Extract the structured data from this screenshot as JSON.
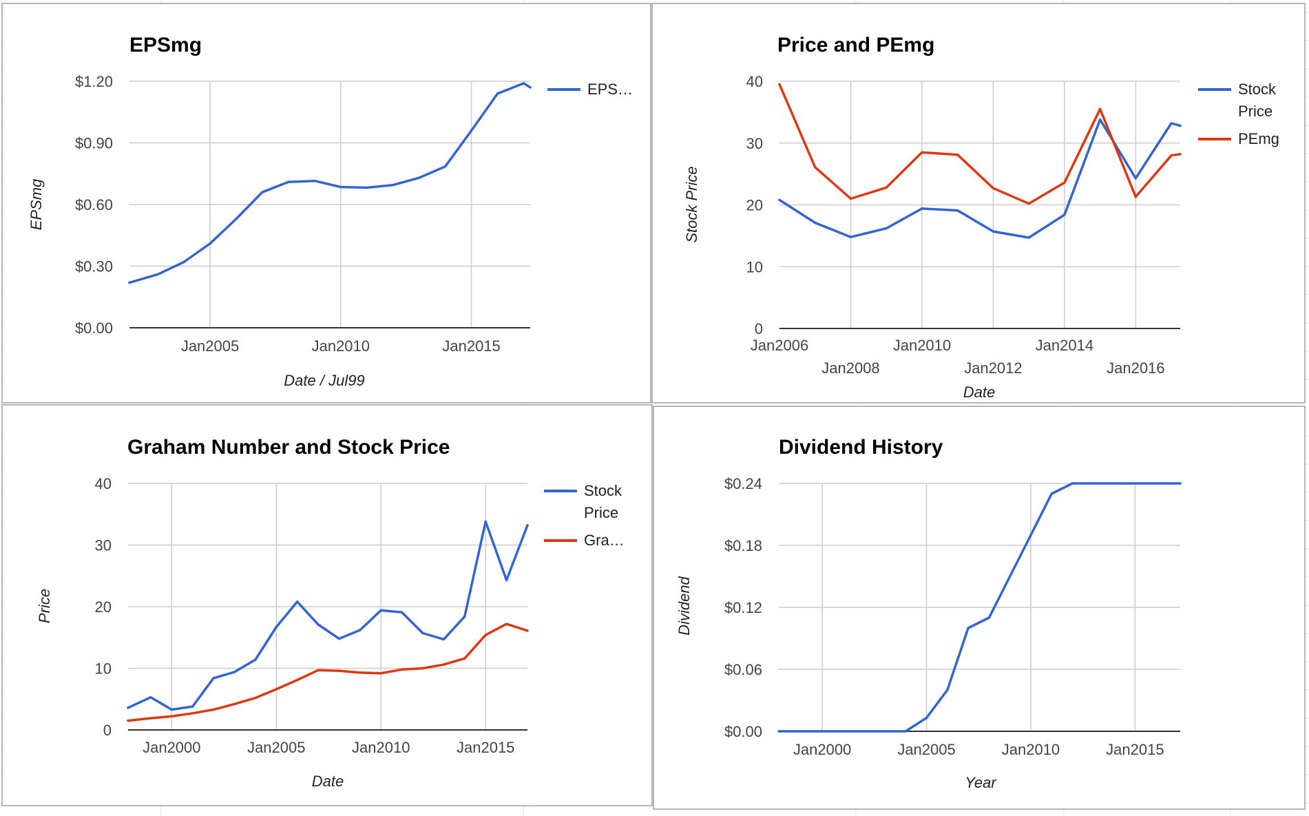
{
  "colors": {
    "blue": "#3366cc",
    "red": "#dc3912",
    "grid": "#cccccc",
    "axis": "#333333",
    "tick_text": "#444444",
    "title_text": "#000000",
    "panel_border": "#9e9e9e",
    "sheet_grid": "#e3e3e3"
  },
  "chart_data": [
    {
      "type": "line",
      "title": "EPSmg",
      "xlabel": "Date / Jul99",
      "ylabel": "EPSmg",
      "x_tick_labels": [
        "Jan2005",
        "Jan2010",
        "Jan2015"
      ],
      "y_tick_labels": [
        "$0.00",
        "$0.30",
        "$0.60",
        "$0.90",
        "$1.20"
      ],
      "ylim": [
        0,
        1.2
      ],
      "xlim": [
        "2001-12",
        "2017-04"
      ],
      "legend": "right",
      "grid": true,
      "series": [
        {
          "name": "EPS…",
          "color": "blue",
          "points": [
            [
              "2001-12",
              0.22
            ],
            [
              "2003-01",
              0.26
            ],
            [
              "2004-01",
              0.32
            ],
            [
              "2005-01",
              0.41
            ],
            [
              "2006-01",
              0.53
            ],
            [
              "2007-01",
              0.66
            ],
            [
              "2008-01",
              0.71
            ],
            [
              "2009-01",
              0.715
            ],
            [
              "2010-01",
              0.685
            ],
            [
              "2011-01",
              0.682
            ],
            [
              "2012-01",
              0.695
            ],
            [
              "2013-01",
              0.73
            ],
            [
              "2014-01",
              0.785
            ],
            [
              "2015-01",
              0.96
            ],
            [
              "2016-01",
              1.14
            ],
            [
              "2017-01",
              1.19
            ],
            [
              "2017-04",
              1.17
            ]
          ]
        }
      ]
    },
    {
      "type": "line",
      "title": "Price and PEmg",
      "xlabel": "Date",
      "ylabel": "Stock Price",
      "x_tick_labels": [
        "Jan2006",
        "Jan2008",
        "Jan2010",
        "Jan2012",
        "Jan2014",
        "Jan2016"
      ],
      "y_tick_labels": [
        "0",
        "10",
        "20",
        "30",
        "40"
      ],
      "ylim": [
        0,
        40
      ],
      "xlim": [
        "2006-01",
        "2017-04"
      ],
      "legend": "right",
      "grid": true,
      "series": [
        {
          "name": "Stock Price",
          "color": "blue",
          "points": [
            [
              "2006-01",
              20.8
            ],
            [
              "2007-01",
              17.1
            ],
            [
              "2008-01",
              14.8
            ],
            [
              "2009-01",
              16.2
            ],
            [
              "2010-01",
              19.4
            ],
            [
              "2011-01",
              19.1
            ],
            [
              "2012-01",
              15.7
            ],
            [
              "2013-01",
              14.7
            ],
            [
              "2014-01",
              18.4
            ],
            [
              "2015-01",
              33.8
            ],
            [
              "2016-01",
              24.3
            ],
            [
              "2017-01",
              33.2
            ],
            [
              "2017-04",
              32.8
            ]
          ]
        },
        {
          "name": "PEmg",
          "color": "red",
          "points": [
            [
              "2006-01",
              39.5
            ],
            [
              "2007-01",
              26.1
            ],
            [
              "2008-01",
              21.0
            ],
            [
              "2009-01",
              22.8
            ],
            [
              "2010-01",
              28.5
            ],
            [
              "2011-01",
              28.1
            ],
            [
              "2012-01",
              22.7
            ],
            [
              "2013-01",
              20.2
            ],
            [
              "2014-01",
              23.6
            ],
            [
              "2015-01",
              35.5
            ],
            [
              "2016-01",
              21.3
            ],
            [
              "2017-01",
              28.0
            ],
            [
              "2017-04",
              28.2
            ]
          ]
        }
      ]
    },
    {
      "type": "line",
      "title": "Graham Number and Stock Price",
      "xlabel": "Date",
      "ylabel": "Price",
      "x_tick_labels": [
        "Jan2000",
        "Jan2005",
        "Jan2010",
        "Jan2015"
      ],
      "y_tick_labels": [
        "0",
        "10",
        "20",
        "30",
        "40"
      ],
      "ylim": [
        0,
        40
      ],
      "xlim": [
        "1997-12",
        "2017-01"
      ],
      "legend": "right",
      "grid": true,
      "series": [
        {
          "name": "Stock Price",
          "color": "blue",
          "points": [
            [
              "1997-12",
              3.6
            ],
            [
              "1999-01",
              5.3
            ],
            [
              "2000-01",
              3.3
            ],
            [
              "2001-01",
              3.8
            ],
            [
              "2002-01",
              8.4
            ],
            [
              "2003-01",
              9.4
            ],
            [
              "2004-01",
              11.4
            ],
            [
              "2005-01",
              16.7
            ],
            [
              "2006-01",
              20.8
            ],
            [
              "2007-01",
              17.1
            ],
            [
              "2008-01",
              14.8
            ],
            [
              "2009-01",
              16.2
            ],
            [
              "2010-01",
              19.4
            ],
            [
              "2011-01",
              19.1
            ],
            [
              "2012-01",
              15.7
            ],
            [
              "2013-01",
              14.7
            ],
            [
              "2014-01",
              18.4
            ],
            [
              "2015-01",
              33.8
            ],
            [
              "2016-01",
              24.3
            ],
            [
              "2017-01",
              33.2
            ]
          ]
        },
        {
          "name": "Gra…",
          "color": "red",
          "points": [
            [
              "1997-12",
              1.5
            ],
            [
              "1999-01",
              1.9
            ],
            [
              "2000-01",
              2.2
            ],
            [
              "2001-01",
              2.7
            ],
            [
              "2002-01",
              3.3
            ],
            [
              "2003-01",
              4.2
            ],
            [
              "2004-01",
              5.2
            ],
            [
              "2005-01",
              6.6
            ],
            [
              "2006-01",
              8.1
            ],
            [
              "2007-01",
              9.7
            ],
            [
              "2008-01",
              9.6
            ],
            [
              "2009-01",
              9.3
            ],
            [
              "2010-01",
              9.2
            ],
            [
              "2011-01",
              9.8
            ],
            [
              "2012-01",
              10.0
            ],
            [
              "2013-01",
              10.6
            ],
            [
              "2014-01",
              11.6
            ],
            [
              "2015-01",
              15.4
            ],
            [
              "2016-01",
              17.2
            ],
            [
              "2017-01",
              16.1
            ]
          ]
        }
      ]
    },
    {
      "type": "line",
      "title": "Dividend History",
      "xlabel": "Year",
      "ylabel": "Dividend",
      "x_tick_labels": [
        "Jan2000",
        "Jan2005",
        "Jan2010",
        "Jan2015"
      ],
      "y_tick_labels": [
        "$0.00",
        "$0.06",
        "$0.12",
        "$0.18",
        "$0.24"
      ],
      "ylim": [
        0,
        0.24
      ],
      "xlim": [
        "1997-12",
        "2017-03"
      ],
      "legend": "none",
      "grid": true,
      "series": [
        {
          "color": "blue",
          "points": [
            [
              "1997-12",
              0.0
            ],
            [
              "2004-01",
              0.0
            ],
            [
              "2005-01",
              0.013
            ],
            [
              "2006-01",
              0.04
            ],
            [
              "2007-01",
              0.1
            ],
            [
              "2008-01",
              0.11
            ],
            [
              "2009-01",
              0.15
            ],
            [
              "2010-01",
              0.19
            ],
            [
              "2011-01",
              0.23
            ],
            [
              "2012-01",
              0.24
            ],
            [
              "2013-01",
              0.24
            ],
            [
              "2017-03",
              0.24
            ]
          ]
        }
      ]
    }
  ]
}
